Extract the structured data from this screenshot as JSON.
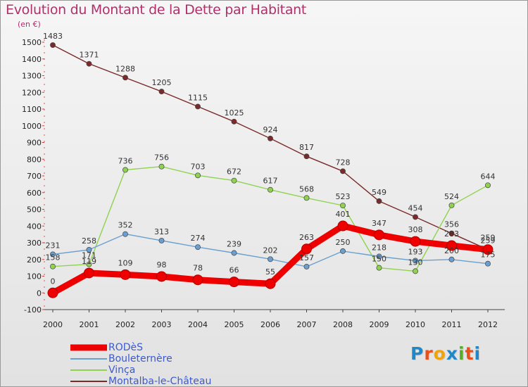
{
  "header": {
    "title": "Evolution du Montant de la Dette par Habitant",
    "unit": "(en €)"
  },
  "logo": {
    "letters": [
      "P",
      "r",
      "o",
      "x",
      "i",
      "t",
      "i"
    ],
    "colors": [
      "#1e88c8",
      "#e8501a",
      "#f2a20a",
      "#1e88c8",
      "#5aab2a",
      "#e8501a",
      "#1e88c8"
    ]
  },
  "chart_data": {
    "type": "line",
    "title": "Evolution du Montant de la Dette par Habitant",
    "ylabel": "(en €)",
    "xlabel": "",
    "x": [
      "2000",
      "2001",
      "2002",
      "2003",
      "2004",
      "2005",
      "2006",
      "2007",
      "2008",
      "2009",
      "2010",
      "2011",
      "2012"
    ],
    "ylim": [
      -100,
      1500
    ],
    "yticks": [
      "-100",
      "0",
      "100",
      "200",
      "300",
      "400",
      "500",
      "600",
      "700",
      "800",
      "900",
      "1000",
      "1100",
      "1200",
      "1300",
      "1400",
      "1500"
    ],
    "grid": false,
    "legend_position": "bottom-left",
    "series": [
      {
        "name": "Montalba-le-Château",
        "color": "#7a2a2a",
        "values": [
          1483,
          1371,
          1288,
          1205,
          1115,
          1025,
          924,
          817,
          728,
          549,
          454,
          356,
          259
        ],
        "labels": [
          "1483",
          "1371",
          "1288",
          "1205",
          "1115",
          "1025",
          "924",
          "817",
          "728",
          "549",
          "454",
          "356",
          "259"
        ]
      },
      {
        "name": "Vinça",
        "color": "#8fd24f",
        "values": [
          158,
          171,
          736,
          756,
          703,
          672,
          617,
          568,
          523,
          150,
          130,
          524,
          644
        ],
        "labels": [
          "158",
          "171",
          "736",
          "756",
          "703",
          "672",
          "617",
          "568",
          "523",
          "150",
          "130",
          "524",
          "644"
        ]
      },
      {
        "name": "Bouleternère",
        "color": "#6a9fd0",
        "values": [
          231,
          258,
          352,
          313,
          274,
          239,
          202,
          157,
          250,
          218,
          193,
          200,
          175
        ],
        "labels": [
          "231",
          "258",
          "352",
          "313",
          "274",
          "239",
          "202",
          "157",
          "250",
          "218",
          "193",
          "200",
          "175"
        ]
      },
      {
        "name": "RODèS",
        "color": "#ee0000",
        "values": [
          0,
          119,
          109,
          98,
          78,
          66,
          55,
          263,
          401,
          347,
          308,
          283,
          259
        ],
        "labels": [
          "0",
          "119",
          "109",
          "98",
          "78",
          "66",
          "55",
          "263",
          "401",
          "347",
          "308",
          "283",
          "259"
        ]
      }
    ],
    "legend_order": [
      "RODèS",
      "Bouleternère",
      "Vinça",
      "Montalba-le-Château"
    ]
  }
}
